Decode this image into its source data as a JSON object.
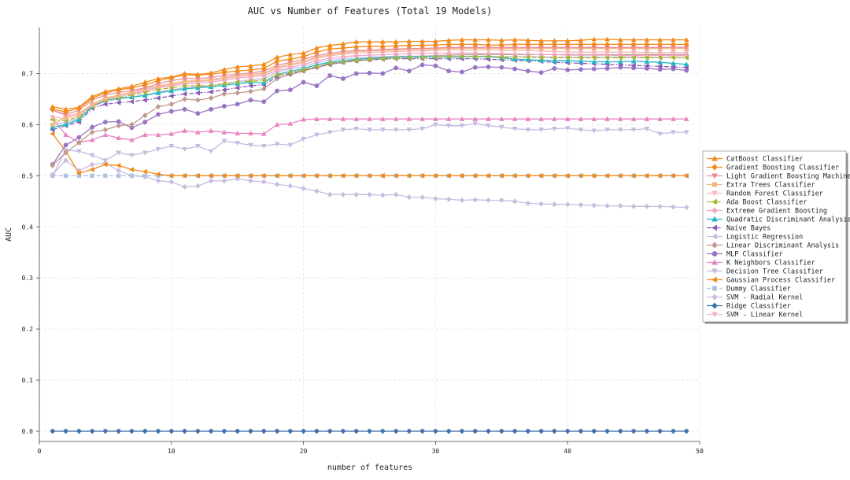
{
  "chart_data": {
    "type": "line",
    "title": "AUC vs Number of Features (Total 19 Models)",
    "xlabel": "number of features",
    "ylabel": "AUC",
    "xlim": [
      0,
      50
    ],
    "ylim": [
      -0.02,
      0.79
    ],
    "xticks": [
      0,
      10,
      20,
      30,
      40,
      50
    ],
    "xtick_labels": [
      "0",
      "10",
      "20",
      "30",
      "40",
      "50"
    ],
    "yticks": [
      0.0,
      0.1,
      0.2,
      0.3,
      0.4,
      0.5,
      0.6,
      0.7
    ],
    "ytick_labels": [
      "0.0",
      "0.1",
      "0.2",
      "0.3",
      "0.4",
      "0.5",
      "0.6",
      "0.7"
    ],
    "grid": true,
    "legend_position": "right",
    "x": [
      1,
      2,
      3,
      4,
      5,
      6,
      7,
      8,
      9,
      10,
      11,
      12,
      13,
      14,
      15,
      16,
      17,
      18,
      19,
      20,
      21,
      22,
      23,
      24,
      25,
      26,
      27,
      28,
      29,
      30,
      31,
      32,
      33,
      34,
      35,
      36,
      37,
      38,
      39,
      40,
      41,
      42,
      43,
      44,
      45,
      46,
      47,
      48,
      49
    ],
    "series": [
      {
        "name": "CatBoost Classifier",
        "color": "#f28a1a",
        "marker": "triangle-up",
        "dash": "solid",
        "values": [
          0.635,
          0.63,
          0.634,
          0.655,
          0.665,
          0.67,
          0.675,
          0.683,
          0.69,
          0.693,
          0.7,
          0.698,
          0.701,
          0.708,
          0.713,
          0.715,
          0.718,
          0.732,
          0.737,
          0.74,
          0.75,
          0.755,
          0.758,
          0.762,
          0.762,
          0.762,
          0.762,
          0.763,
          0.763,
          0.763,
          0.765,
          0.766,
          0.766,
          0.766,
          0.765,
          0.766,
          0.765,
          0.764,
          0.764,
          0.764,
          0.765,
          0.767,
          0.767,
          0.766,
          0.766,
          0.766,
          0.766,
          0.766,
          0.766
        ]
      },
      {
        "name": "Gradient Boosting Classifier",
        "color": "#f28a1a",
        "marker": "diamond",
        "dash": "solid",
        "values": [
          0.63,
          0.625,
          0.632,
          0.652,
          0.662,
          0.668,
          0.672,
          0.678,
          0.686,
          0.692,
          0.697,
          0.697,
          0.699,
          0.702,
          0.705,
          0.707,
          0.71,
          0.724,
          0.728,
          0.733,
          0.742,
          0.748,
          0.75,
          0.752,
          0.753,
          0.753,
          0.754,
          0.755,
          0.755,
          0.756,
          0.757,
          0.757,
          0.757,
          0.756,
          0.756,
          0.757,
          0.757,
          0.757,
          0.757,
          0.757,
          0.757,
          0.757,
          0.757,
          0.757,
          0.757,
          0.757,
          0.757,
          0.757,
          0.757
        ]
      },
      {
        "name": "Light Gradient Boosting Machine",
        "color": "#e98f96",
        "marker": "triangle-down",
        "dash": "solid",
        "values": [
          0.628,
          0.62,
          0.628,
          0.648,
          0.658,
          0.663,
          0.667,
          0.672,
          0.68,
          0.686,
          0.69,
          0.69,
          0.692,
          0.696,
          0.699,
          0.701,
          0.705,
          0.716,
          0.722,
          0.728,
          0.735,
          0.74,
          0.743,
          0.745,
          0.746,
          0.747,
          0.748,
          0.749,
          0.749,
          0.75,
          0.751,
          0.751,
          0.751,
          0.751,
          0.751,
          0.751,
          0.751,
          0.751,
          0.751,
          0.751,
          0.751,
          0.751,
          0.751,
          0.751,
          0.751,
          0.751,
          0.751,
          0.751,
          0.751
        ]
      },
      {
        "name": "Extra Trees Classifier",
        "color": "#f5b682",
        "marker": "square",
        "dash": "solid",
        "values": [
          0.6,
          0.615,
          0.622,
          0.64,
          0.652,
          0.658,
          0.664,
          0.67,
          0.676,
          0.68,
          0.685,
          0.686,
          0.688,
          0.692,
          0.696,
          0.698,
          0.701,
          0.712,
          0.718,
          0.724,
          0.732,
          0.737,
          0.74,
          0.743,
          0.744,
          0.745,
          0.746,
          0.747,
          0.747,
          0.748,
          0.749,
          0.749,
          0.749,
          0.749,
          0.749,
          0.749,
          0.749,
          0.749,
          0.749,
          0.749,
          0.749,
          0.749,
          0.749,
          0.749,
          0.749,
          0.749,
          0.749,
          0.749,
          0.749
        ]
      },
      {
        "name": "Random Forest Classifier",
        "color": "#f7b8c2",
        "marker": "triangle-down",
        "dash": "solid",
        "values": [
          0.615,
          0.612,
          0.618,
          0.638,
          0.65,
          0.656,
          0.662,
          0.668,
          0.674,
          0.678,
          0.683,
          0.684,
          0.686,
          0.69,
          0.694,
          0.696,
          0.699,
          0.71,
          0.716,
          0.722,
          0.73,
          0.735,
          0.738,
          0.74,
          0.741,
          0.742,
          0.743,
          0.744,
          0.744,
          0.745,
          0.746,
          0.746,
          0.746,
          0.746,
          0.745,
          0.745,
          0.745,
          0.744,
          0.743,
          0.742,
          0.742,
          0.742,
          0.742,
          0.742,
          0.742,
          0.741,
          0.741,
          0.741,
          0.741
        ]
      },
      {
        "name": "Ada Boost Classifier",
        "color": "#a9b532",
        "marker": "triangle-left",
        "dash": "dashdot",
        "values": [
          0.61,
          0.608,
          0.615,
          0.636,
          0.648,
          0.653,
          0.658,
          0.663,
          0.669,
          0.672,
          0.676,
          0.676,
          0.677,
          0.68,
          0.683,
          0.685,
          0.687,
          0.697,
          0.702,
          0.707,
          0.714,
          0.72,
          0.723,
          0.726,
          0.728,
          0.729,
          0.73,
          0.731,
          0.731,
          0.732,
          0.733,
          0.733,
          0.733,
          0.733,
          0.732,
          0.732,
          0.732,
          0.731,
          0.731,
          0.731,
          0.731,
          0.731,
          0.731,
          0.731,
          0.731,
          0.731,
          0.731,
          0.731,
          0.731
        ]
      },
      {
        "name": "Extreme Gradient Boosting",
        "color": "#f2a7c6",
        "marker": "diamond",
        "dash": "solid",
        "values": [
          0.628,
          0.618,
          0.62,
          0.638,
          0.65,
          0.656,
          0.66,
          0.666,
          0.672,
          0.676,
          0.68,
          0.681,
          0.683,
          0.687,
          0.691,
          0.693,
          0.696,
          0.706,
          0.712,
          0.718,
          0.725,
          0.73,
          0.733,
          0.735,
          0.736,
          0.737,
          0.738,
          0.739,
          0.739,
          0.74,
          0.74,
          0.74,
          0.74,
          0.739,
          0.739,
          0.738,
          0.738,
          0.737,
          0.737,
          0.736,
          0.736,
          0.736,
          0.736,
          0.735,
          0.735,
          0.735,
          0.735,
          0.735,
          0.735
        ]
      },
      {
        "name": "Quadratic Discriminant Analysis",
        "color": "#23b5c4",
        "marker": "triangle-up",
        "dash": "solid",
        "values": [
          0.595,
          0.6,
          0.61,
          0.635,
          0.648,
          0.652,
          0.654,
          0.657,
          0.662,
          0.666,
          0.67,
          0.672,
          0.674,
          0.677,
          0.68,
          0.683,
          0.682,
          0.698,
          0.704,
          0.71,
          0.717,
          0.722,
          0.725,
          0.728,
          0.73,
          0.731,
          0.732,
          0.733,
          0.733,
          0.733,
          0.732,
          0.733,
          0.733,
          0.733,
          0.731,
          0.728,
          0.727,
          0.726,
          0.725,
          0.725,
          0.724,
          0.723,
          0.723,
          0.723,
          0.724,
          0.723,
          0.722,
          0.72,
          0.718
        ]
      },
      {
        "name": "Naive Bayes",
        "color": "#8a5cb5",
        "marker": "triangle-left",
        "dash": "dashdot",
        "values": [
          0.59,
          0.598,
          0.605,
          0.632,
          0.64,
          0.643,
          0.645,
          0.648,
          0.652,
          0.656,
          0.66,
          0.662,
          0.664,
          0.668,
          0.672,
          0.676,
          0.678,
          0.694,
          0.7,
          0.706,
          0.713,
          0.718,
          0.722,
          0.725,
          0.727,
          0.728,
          0.729,
          0.729,
          0.729,
          0.729,
          0.729,
          0.729,
          0.729,
          0.728,
          0.727,
          0.726,
          0.725,
          0.724,
          0.722,
          0.721,
          0.72,
          0.719,
          0.718,
          0.717,
          0.716,
          0.715,
          0.714,
          0.713,
          0.712
        ]
      },
      {
        "name": "Logistic Regression",
        "color": "#c6bedf",
        "marker": "triangle-left",
        "dash": "solid",
        "values": [
          0.6,
          0.604,
          0.612,
          0.636,
          0.645,
          0.65,
          0.654,
          0.658,
          0.664,
          0.668,
          0.672,
          0.674,
          0.676,
          0.68,
          0.684,
          0.688,
          0.69,
          0.703,
          0.709,
          0.714,
          0.721,
          0.726,
          0.729,
          0.731,
          0.732,
          0.733,
          0.734,
          0.734,
          0.734,
          0.734,
          0.734,
          0.734,
          0.734,
          0.734,
          0.733,
          0.733,
          0.733,
          0.733,
          0.732,
          0.732,
          0.732,
          0.732,
          0.732,
          0.732,
          0.732,
          0.731,
          0.731,
          0.731,
          0.731
        ]
      },
      {
        "name": "Linear Discriminant Analysis",
        "color": "#c09a8e",
        "marker": "diamond",
        "dash": "solid",
        "values": [
          0.52,
          0.545,
          0.565,
          0.585,
          0.59,
          0.598,
          0.6,
          0.618,
          0.635,
          0.64,
          0.65,
          0.648,
          0.652,
          0.66,
          0.662,
          0.665,
          0.67,
          0.69,
          0.698,
          0.705,
          0.712,
          0.718,
          0.722,
          0.725,
          0.727,
          0.73,
          0.732,
          0.733,
          0.734,
          0.735,
          0.736,
          0.737,
          0.737,
          0.737,
          0.737,
          0.737,
          0.737,
          0.737,
          0.737,
          0.737,
          0.737,
          0.737,
          0.737,
          0.737,
          0.737,
          0.737,
          0.737,
          0.737,
          0.737
        ]
      },
      {
        "name": "MLP Classifier",
        "color": "#9b74c4",
        "marker": "circle",
        "dash": "solid",
        "values": [
          0.522,
          0.56,
          0.575,
          0.595,
          0.605,
          0.606,
          0.594,
          0.605,
          0.62,
          0.626,
          0.63,
          0.622,
          0.63,
          0.636,
          0.64,
          0.648,
          0.645,
          0.666,
          0.668,
          0.683,
          0.676,
          0.696,
          0.69,
          0.7,
          0.701,
          0.7,
          0.711,
          0.705,
          0.717,
          0.715,
          0.705,
          0.703,
          0.712,
          0.713,
          0.712,
          0.709,
          0.705,
          0.702,
          0.71,
          0.707,
          0.708,
          0.709,
          0.71,
          0.712,
          0.711,
          0.71,
          0.708,
          0.709,
          0.706
        ]
      },
      {
        "name": "K Neighbors Classifier",
        "color": "#e785c3",
        "marker": "triangle-up",
        "dash": "solid",
        "values": [
          0.612,
          0.58,
          0.565,
          0.57,
          0.58,
          0.574,
          0.57,
          0.58,
          0.58,
          0.582,
          0.588,
          0.585,
          0.588,
          0.585,
          0.583,
          0.583,
          0.582,
          0.6,
          0.602,
          0.61,
          0.611,
          0.611,
          0.611,
          0.611,
          0.611,
          0.611,
          0.611,
          0.611,
          0.611,
          0.611,
          0.611,
          0.611,
          0.611,
          0.611,
          0.611,
          0.611,
          0.611,
          0.611,
          0.611,
          0.611,
          0.611,
          0.611,
          0.611,
          0.611,
          0.611,
          0.611,
          0.611,
          0.611,
          0.611
        ]
      },
      {
        "name": "Decision Tree Classifier",
        "color": "#c6bbe0",
        "marker": "triangle-down",
        "dash": "solid",
        "values": [
          0.5,
          0.55,
          0.548,
          0.54,
          0.53,
          0.545,
          0.54,
          0.545,
          0.552,
          0.558,
          0.552,
          0.558,
          0.548,
          0.568,
          0.564,
          0.56,
          0.558,
          0.562,
          0.56,
          0.572,
          0.58,
          0.585,
          0.59,
          0.592,
          0.59,
          0.59,
          0.59,
          0.59,
          0.592,
          0.6,
          0.598,
          0.598,
          0.602,
          0.598,
          0.595,
          0.592,
          0.59,
          0.59,
          0.592,
          0.593,
          0.59,
          0.588,
          0.59,
          0.59,
          0.59,
          0.592,
          0.582,
          0.585,
          0.585
        ]
      },
      {
        "name": "Gaussian Process Classifier",
        "color": "#f28a1a",
        "marker": "triangle-left",
        "dash": "solid",
        "values": [
          0.582,
          0.548,
          0.505,
          0.512,
          0.522,
          0.52,
          0.512,
          0.508,
          0.503,
          0.5,
          0.5,
          0.5,
          0.5,
          0.5,
          0.5,
          0.5,
          0.5,
          0.5,
          0.5,
          0.5,
          0.5,
          0.5,
          0.5,
          0.5,
          0.5,
          0.5,
          0.5,
          0.5,
          0.5,
          0.5,
          0.5,
          0.5,
          0.5,
          0.5,
          0.5,
          0.5,
          0.5,
          0.5,
          0.5,
          0.5,
          0.5,
          0.5,
          0.5,
          0.5,
          0.5,
          0.5,
          0.5,
          0.5,
          0.5
        ]
      },
      {
        "name": "Dummy Classifier",
        "color": "#adc4e0",
        "marker": "square",
        "dash": "dashed",
        "values": [
          0.5,
          0.5,
          0.5,
          0.5,
          0.5,
          0.5,
          0.5,
          0.5,
          0.5,
          0.5,
          0.5,
          0.5,
          0.5,
          0.5,
          0.5,
          0.5,
          0.5,
          0.5,
          0.5,
          0.5,
          0.5,
          0.5,
          0.5,
          0.5,
          0.5,
          0.5,
          0.5,
          0.5,
          0.5,
          0.5,
          0.5,
          0.5,
          0.5,
          0.5,
          0.5,
          0.5,
          0.5,
          0.5,
          0.5,
          0.5,
          0.5,
          0.5,
          0.5,
          0.5,
          0.5,
          0.5,
          0.5,
          0.5,
          0.5
        ]
      },
      {
        "name": "SVM - Radial Kernel",
        "color": "#c9bddf",
        "marker": "diamond",
        "dash": "solid",
        "values": [
          0.502,
          0.53,
          0.51,
          0.522,
          0.525,
          0.51,
          0.5,
          0.498,
          0.49,
          0.488,
          0.478,
          0.48,
          0.49,
          0.49,
          0.494,
          0.49,
          0.488,
          0.483,
          0.48,
          0.475,
          0.47,
          0.463,
          0.463,
          0.463,
          0.463,
          0.462,
          0.463,
          0.458,
          0.458,
          0.455,
          0.454,
          0.452,
          0.453,
          0.452,
          0.452,
          0.45,
          0.446,
          0.445,
          0.444,
          0.444,
          0.443,
          0.442,
          0.441,
          0.441,
          0.44,
          0.44,
          0.44,
          0.439,
          0.438
        ]
      },
      {
        "name": "Ridge Classifier",
        "color": "#3a74ad",
        "marker": "diamond",
        "dash": "solid",
        "values": [
          0.0,
          0.0,
          0.0,
          0.0,
          0.0,
          0.0,
          0.0,
          0.0,
          0.0,
          0.0,
          0.0,
          0.0,
          0.0,
          0.0,
          0.0,
          0.0,
          0.0,
          0.0,
          0.0,
          0.0,
          0.0,
          0.0,
          0.0,
          0.0,
          0.0,
          0.0,
          0.0,
          0.0,
          0.0,
          0.0,
          0.0,
          0.0,
          0.0,
          0.0,
          0.0,
          0.0,
          0.0,
          0.0,
          0.0,
          0.0,
          0.0,
          0.0,
          0.0,
          0.0,
          0.0,
          0.0,
          0.0,
          0.0,
          0.0
        ]
      },
      {
        "name": "SVM - Linear Kernel",
        "color": "#f6b6cf",
        "marker": "triangle-down",
        "dash": "solid",
        "values": [
          0.0,
          0.0,
          0.0,
          0.0,
          0.0,
          0.0,
          0.0,
          0.0,
          0.0,
          0.0,
          0.0,
          0.0,
          0.0,
          0.0,
          0.0,
          0.0,
          0.0,
          0.0,
          0.0,
          0.0,
          0.0,
          0.0,
          0.0,
          0.0,
          0.0,
          0.0,
          0.0,
          0.0,
          0.0,
          0.0,
          0.0,
          0.0,
          0.0,
          0.0,
          0.0,
          0.0,
          0.0,
          0.0,
          0.0,
          0.0,
          0.0,
          0.0,
          0.0,
          0.0,
          0.0,
          0.0,
          0.0,
          0.0,
          0.0
        ]
      }
    ]
  }
}
